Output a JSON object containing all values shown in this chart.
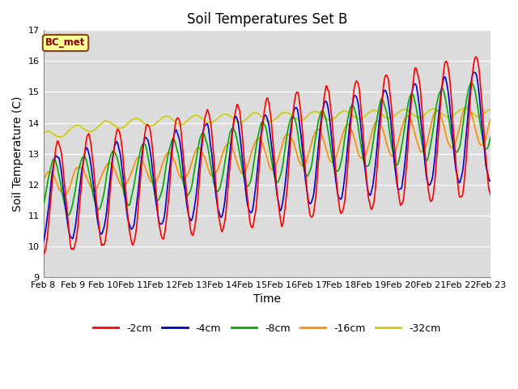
{
  "title": "Soil Temperatures Set B",
  "xlabel": "Time",
  "ylabel": "Soil Temperature (C)",
  "ylim": [
    9.0,
    17.0
  ],
  "yticks": [
    9.0,
    10.0,
    11.0,
    12.0,
    13.0,
    14.0,
    15.0,
    16.0,
    17.0
  ],
  "xtick_labels": [
    "Feb 8",
    "Feb 9",
    "Feb 10",
    "Feb 11",
    "Feb 12",
    "Feb 13",
    "Feb 14",
    "Feb 15",
    "Feb 16",
    "Feb 17",
    "Feb 18",
    "Feb 19",
    "Feb 20",
    "Feb 21",
    "Feb 22",
    "Feb 23"
  ],
  "annotation_text": "BC_met",
  "annotation_facecolor": "#FFFF99",
  "annotation_edgecolor": "#8B4513",
  "annotation_textcolor": "#8B0000",
  "bg_color": "#DCDCDC",
  "line_colors": {
    "-2cm": "#FF0000",
    "-4cm": "#0000CC",
    "-8cm": "#00AA00",
    "-16cm": "#FF8C00",
    "-32cm": "#CCCC00"
  },
  "line_width": 1.2,
  "legend_labels": [
    "-2cm",
    "-4cm",
    "-8cm",
    "-16cm",
    "-32cm"
  ]
}
